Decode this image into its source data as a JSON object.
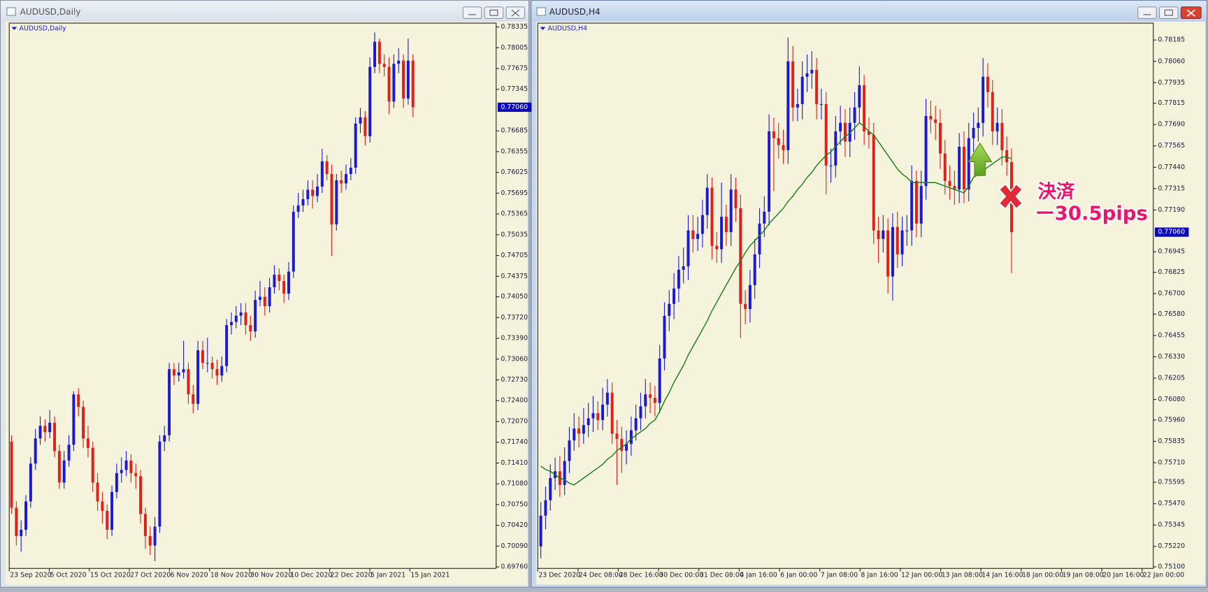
{
  "chart_data": [
    {
      "type": "candlestick",
      "window_title": "AUDUSD,Daily",
      "symbol_label": "AUDUSD,Daily",
      "bull_color": "#1a1ad6",
      "bear_color": "#e0201b",
      "ylim": [
        0.69736,
        0.78396
      ],
      "yticks": [
        0.78335,
        0.78005,
        0.77675,
        0.77345,
        0.76685,
        0.76355,
        0.76025,
        0.75695,
        0.75365,
        0.75035,
        0.74705,
        0.74375,
        {
          "value": 0.7405,
          "label": "0.74050"
        },
        {
          "value": 0.7372,
          "label": "0.73720"
        },
        {
          "value": 0.7339,
          "label": "0.73390"
        },
        {
          "value": 0.7306,
          "label": "0.73060"
        },
        {
          "value": 0.7273,
          "label": "0.72730"
        },
        {
          "value": 0.724,
          "label": "0.72400"
        },
        {
          "value": 0.7207,
          "label": "0.72070"
        },
        {
          "value": 0.7174,
          "label": "0.71740"
        },
        {
          "value": 0.7141,
          "label": "0.71410"
        },
        {
          "value": 0.7108,
          "label": "0.71080"
        },
        {
          "value": 0.7075,
          "label": "0.70750"
        },
        {
          "value": 0.7042,
          "label": "0.70420"
        },
        {
          "value": 0.7009,
          "label": "0.70090"
        },
        {
          "value": 0.6976,
          "label": "0.69760"
        }
      ],
      "current_price": {
        "value": 0.7706,
        "label": "0.77060"
      },
      "x_labels": [
        "23 Sep 2020",
        "5 Oct 2020",
        "15 Oct 2020",
        "27 Oct 2020",
        "6 Nov 2020",
        "18 Nov 2020",
        "30 Nov 2020",
        "10 Dec 2020",
        "22 Dec 2020",
        "5 Jan 2021",
        "15 Jan 2021"
      ],
      "open": [
        0.7175,
        0.707,
        0.7025,
        0.7035,
        0.708,
        0.714,
        0.718,
        0.72,
        0.719,
        0.7205,
        0.716,
        0.711,
        0.7145,
        0.717,
        0.725,
        0.723,
        0.718,
        0.7165,
        0.711,
        0.708,
        0.7065,
        0.7035,
        0.7095,
        0.7125,
        0.713,
        0.7145,
        0.7125,
        0.712,
        0.706,
        0.7025,
        0.701,
        0.704,
        0.7175,
        0.7185,
        0.729,
        0.728,
        0.7285,
        0.729,
        0.725,
        0.7235,
        0.732,
        0.73,
        0.73,
        0.729,
        0.728,
        0.7295,
        0.736,
        0.7365,
        0.7375,
        0.738,
        0.736,
        0.735,
        0.74,
        0.7405,
        0.739,
        0.742,
        0.744,
        0.743,
        0.741,
        0.7445,
        0.754,
        0.755,
        0.756,
        0.7575,
        0.7565,
        0.758,
        0.762,
        0.76,
        0.752,
        0.759,
        0.7585,
        0.76,
        0.761,
        0.768,
        0.769,
        0.766,
        0.777,
        0.781,
        0.7775,
        0.777,
        0.7715,
        0.7775,
        0.778,
        0.772,
        0.778
      ],
      "high": [
        0.7185,
        0.708,
        0.705,
        0.709,
        0.715,
        0.7195,
        0.7215,
        0.721,
        0.7225,
        0.7215,
        0.717,
        0.716,
        0.7185,
        0.7255,
        0.726,
        0.724,
        0.72,
        0.7175,
        0.7125,
        0.7095,
        0.7075,
        0.7105,
        0.714,
        0.715,
        0.716,
        0.7155,
        0.714,
        0.713,
        0.707,
        0.704,
        0.7055,
        0.7185,
        0.72,
        0.73,
        0.73,
        0.73,
        0.7335,
        0.73,
        0.7265,
        0.7335,
        0.7335,
        0.734,
        0.731,
        0.7305,
        0.731,
        0.737,
        0.738,
        0.739,
        0.7395,
        0.7395,
        0.7375,
        0.7415,
        0.743,
        0.742,
        0.7435,
        0.7455,
        0.745,
        0.744,
        0.746,
        0.755,
        0.757,
        0.7575,
        0.759,
        0.759,
        0.76,
        0.764,
        0.763,
        0.7615,
        0.76,
        0.7605,
        0.7615,
        0.7625,
        0.769,
        0.7705,
        0.77,
        0.7785,
        0.7825,
        0.7815,
        0.779,
        0.7785,
        0.779,
        0.78,
        0.779,
        0.7815,
        0.779
      ],
      "low": [
        0.706,
        0.701,
        0.7,
        0.7025,
        0.707,
        0.713,
        0.717,
        0.7175,
        0.718,
        0.715,
        0.71,
        0.71,
        0.7135,
        0.716,
        0.7215,
        0.7165,
        0.715,
        0.7095,
        0.7065,
        0.7045,
        0.702,
        0.7025,
        0.7085,
        0.711,
        0.712,
        0.711,
        0.71,
        0.7045,
        0.7005,
        0.6995,
        0.6985,
        0.703,
        0.716,
        0.7175,
        0.7265,
        0.727,
        0.7275,
        0.7235,
        0.722,
        0.7225,
        0.729,
        0.7285,
        0.7275,
        0.7265,
        0.727,
        0.7285,
        0.7345,
        0.7355,
        0.736,
        0.7345,
        0.7335,
        0.734,
        0.739,
        0.7375,
        0.738,
        0.741,
        0.7415,
        0.7395,
        0.74,
        0.7435,
        0.753,
        0.754,
        0.755,
        0.7545,
        0.7555,
        0.757,
        0.759,
        0.747,
        0.751,
        0.757,
        0.7575,
        0.759,
        0.76,
        0.7665,
        0.7645,
        0.765,
        0.776,
        0.776,
        0.7755,
        0.7695,
        0.7705,
        0.776,
        0.7705,
        0.771,
        0.769
      ],
      "close": [
        0.707,
        0.7025,
        0.7035,
        0.708,
        0.714,
        0.718,
        0.72,
        0.719,
        0.7205,
        0.716,
        0.711,
        0.7145,
        0.717,
        0.725,
        0.723,
        0.718,
        0.7165,
        0.711,
        0.708,
        0.7065,
        0.7035,
        0.7095,
        0.7125,
        0.713,
        0.7145,
        0.7125,
        0.712,
        0.706,
        0.7025,
        0.701,
        0.704,
        0.7175,
        0.7185,
        0.729,
        0.728,
        0.7285,
        0.729,
        0.725,
        0.7235,
        0.732,
        0.73,
        0.73,
        0.729,
        0.728,
        0.7295,
        0.736,
        0.7365,
        0.7375,
        0.738,
        0.736,
        0.735,
        0.74,
        0.7405,
        0.739,
        0.742,
        0.744,
        0.743,
        0.741,
        0.7445,
        0.754,
        0.755,
        0.756,
        0.7575,
        0.7565,
        0.758,
        0.762,
        0.76,
        0.752,
        0.759,
        0.7585,
        0.76,
        0.761,
        0.768,
        0.769,
        0.766,
        0.777,
        0.781,
        0.7775,
        0.777,
        0.7715,
        0.7775,
        0.778,
        0.772,
        0.778,
        0.7706
      ]
    },
    {
      "type": "candlestick",
      "window_title": "AUDUSD,H4",
      "symbol_label": "AUDUSD,H4",
      "bull_color": "#1a1ad6",
      "bear_color": "#e0201b",
      "ylim": [
        0.75091,
        0.78284
      ],
      "yticks": [
        0.78185,
        {
          "value": 0.7806,
          "label": "0.78060"
        },
        0.77935,
        0.77815,
        {
          "value": 0.7769,
          "label": "0.77690"
        },
        0.77565,
        {
          "value": 0.7744,
          "label": "0.77440"
        },
        0.77315,
        {
          "value": 0.7719,
          "label": "0.77190"
        },
        0.76945,
        0.76825,
        {
          "value": 0.767,
          "label": "0.76700"
        },
        {
          "value": 0.7658,
          "label": "0.76580"
        },
        0.76455,
        {
          "value": 0.7633,
          "label": "0.76330"
        },
        0.76205,
        {
          "value": 0.7608,
          "label": "0.76080"
        },
        {
          "value": 0.7596,
          "label": "0.75960"
        },
        0.75835,
        {
          "value": 0.7571,
          "label": "0.75710"
        },
        0.75595,
        {
          "value": 0.7547,
          "label": "0.75470"
        },
        0.75345,
        {
          "value": 0.7522,
          "label": "0.75220"
        },
        {
          "value": 0.751,
          "label": "0.75100"
        }
      ],
      "current_price": {
        "value": 0.7706,
        "label": "0.77060"
      },
      "x_labels": [
        "23 Dec 2020",
        "24 Dec 08:00",
        "28 Dec 16:00",
        "30 Dec 00:00",
        "31 Dec 08:00",
        "4 Jan 16:00",
        "6 Jan 00:00",
        "7 Jan 08:00",
        "8 Jan 16:00",
        "12 Jan 00:00",
        "13 Jan 08:00",
        "14 Jan 16:00",
        "18 Jan 00:00",
        "19 Jan 08:00",
        "20 Jan 16:00",
        "22 Jan 00:00"
      ],
      "open": [
        0.7522,
        0.754,
        0.7549,
        0.7562,
        0.7566,
        0.7558,
        0.7572,
        0.7584,
        0.7591,
        0.7588,
        0.7593,
        0.7597,
        0.76,
        0.7596,
        0.7605,
        0.7612,
        0.7588,
        0.7585,
        0.7578,
        0.7582,
        0.759,
        0.7597,
        0.7604,
        0.7611,
        0.7609,
        0.7606,
        0.7632,
        0.7657,
        0.7664,
        0.7673,
        0.7684,
        0.7686,
        0.7707,
        0.7702,
        0.7705,
        0.7716,
        0.7732,
        0.7698,
        0.7696,
        0.7715,
        0.7706,
        0.7731,
        0.772,
        0.7664,
        0.7661,
        0.7675,
        0.7693,
        0.7711,
        0.7718,
        0.7765,
        0.7761,
        0.7757,
        0.7754,
        0.7806,
        0.7779,
        0.7781,
        0.7797,
        0.7799,
        0.7801,
        0.7781,
        0.7781,
        0.7745,
        0.7745,
        0.7765,
        0.777,
        0.7759,
        0.777,
        0.7779,
        0.7792,
        0.7765,
        0.7763,
        0.7707,
        0.7702,
        0.7707,
        0.768,
        0.7709,
        0.7693,
        0.7707,
        0.7707,
        0.7736,
        0.7711,
        0.7733,
        0.7774,
        0.7772,
        0.777,
        0.7752,
        0.7736,
        0.7733,
        0.7731,
        0.7756,
        0.7731,
        0.7761,
        0.7767,
        0.777,
        0.7797,
        0.7788,
        0.7765,
        0.777,
        0.7754,
        0.7747
      ],
      "high": [
        0.7548,
        0.7557,
        0.757,
        0.7574,
        0.7575,
        0.758,
        0.7592,
        0.76,
        0.7598,
        0.7603,
        0.7606,
        0.761,
        0.7607,
        0.7615,
        0.762,
        0.7618,
        0.7596,
        0.7592,
        0.759,
        0.7598,
        0.7605,
        0.7612,
        0.762,
        0.7618,
        0.7616,
        0.764,
        0.7665,
        0.7672,
        0.7682,
        0.7692,
        0.7697,
        0.7716,
        0.7716,
        0.7715,
        0.7725,
        0.774,
        0.7738,
        0.7706,
        0.7735,
        0.7722,
        0.774,
        0.7738,
        0.7728,
        0.7672,
        0.7684,
        0.7702,
        0.772,
        0.7727,
        0.7775,
        0.7773,
        0.777,
        0.7766,
        0.782,
        0.7815,
        0.779,
        0.7806,
        0.781,
        0.7812,
        0.7808,
        0.779,
        0.7788,
        0.7755,
        0.7774,
        0.778,
        0.7778,
        0.7779,
        0.7788,
        0.7803,
        0.7798,
        0.7773,
        0.777,
        0.7715,
        0.7716,
        0.7714,
        0.7717,
        0.7718,
        0.7715,
        0.7716,
        0.7745,
        0.7742,
        0.7742,
        0.7784,
        0.7783,
        0.778,
        0.7778,
        0.776,
        0.7745,
        0.7742,
        0.7764,
        0.7765,
        0.777,
        0.7776,
        0.7779,
        0.7808,
        0.7805,
        0.7795,
        0.7779,
        0.7778,
        0.7762,
        0.7755
      ],
      "low": [
        0.7515,
        0.7532,
        0.7543,
        0.7555,
        0.7551,
        0.7552,
        0.7565,
        0.7578,
        0.758,
        0.7582,
        0.7586,
        0.7589,
        0.759,
        0.759,
        0.7598,
        0.7582,
        0.7558,
        0.7565,
        0.757,
        0.7575,
        0.7584,
        0.759,
        0.7597,
        0.76,
        0.7598,
        0.76,
        0.7625,
        0.7648,
        0.7655,
        0.7665,
        0.7676,
        0.7678,
        0.7694,
        0.7695,
        0.7697,
        0.7708,
        0.769,
        0.7688,
        0.7688,
        0.7698,
        0.7698,
        0.7712,
        0.7644,
        0.7652,
        0.7653,
        0.7667,
        0.7685,
        0.7703,
        0.771,
        0.773,
        0.7749,
        0.7746,
        0.7746,
        0.7771,
        0.7771,
        0.7772,
        0.7788,
        0.779,
        0.7772,
        0.7772,
        0.7728,
        0.7735,
        0.7738,
        0.7757,
        0.775,
        0.775,
        0.776,
        0.777,
        0.7757,
        0.7755,
        0.7699,
        0.7688,
        0.7694,
        0.767,
        0.7666,
        0.7685,
        0.7686,
        0.7698,
        0.7698,
        0.7703,
        0.7703,
        0.7725,
        0.7764,
        0.776,
        0.7743,
        0.7728,
        0.7725,
        0.7722,
        0.7723,
        0.7723,
        0.7724,
        0.7753,
        0.7759,
        0.7762,
        0.7779,
        0.7757,
        0.7757,
        0.7745,
        0.7739,
        0.7682
      ],
      "close": [
        0.754,
        0.7549,
        0.7562,
        0.7566,
        0.7558,
        0.7572,
        0.7584,
        0.7591,
        0.7588,
        0.7593,
        0.7597,
        0.76,
        0.7596,
        0.7605,
        0.7612,
        0.7588,
        0.7585,
        0.7578,
        0.7582,
        0.759,
        0.7597,
        0.7604,
        0.7611,
        0.7609,
        0.7606,
        0.7632,
        0.7657,
        0.7664,
        0.7673,
        0.7684,
        0.7686,
        0.7707,
        0.7702,
        0.7705,
        0.7716,
        0.7732,
        0.7698,
        0.7696,
        0.7715,
        0.7706,
        0.7731,
        0.772,
        0.7664,
        0.7661,
        0.7675,
        0.7693,
        0.7711,
        0.7718,
        0.7765,
        0.7761,
        0.7757,
        0.7754,
        0.7806,
        0.7779,
        0.7781,
        0.7797,
        0.7799,
        0.7801,
        0.7781,
        0.7781,
        0.7745,
        0.7745,
        0.7765,
        0.777,
        0.7759,
        0.777,
        0.7779,
        0.7792,
        0.7765,
        0.7763,
        0.7707,
        0.7702,
        0.7707,
        0.768,
        0.7709,
        0.7693,
        0.7707,
        0.7707,
        0.7736,
        0.7711,
        0.7733,
        0.7774,
        0.7772,
        0.777,
        0.7752,
        0.7736,
        0.7733,
        0.7731,
        0.7756,
        0.7731,
        0.7761,
        0.7767,
        0.777,
        0.7797,
        0.7788,
        0.7765,
        0.777,
        0.7754,
        0.7747,
        0.7706
      ],
      "moving_average": {
        "color": "#178017",
        "values": [
          0.7569,
          0.7567,
          0.7566,
          0.7564,
          0.7562,
          0.7561,
          0.7559,
          0.7558,
          0.756,
          0.7562,
          0.7564,
          0.7566,
          0.7568,
          0.757,
          0.7573,
          0.7575,
          0.7578,
          0.758,
          0.7582,
          0.7585,
          0.7587,
          0.7589,
          0.7591,
          0.7594,
          0.7596,
          0.7601,
          0.7607,
          0.7612,
          0.7618,
          0.7623,
          0.7628,
          0.7634,
          0.7639,
          0.7644,
          0.7649,
          0.7654,
          0.766,
          0.7665,
          0.767,
          0.7675,
          0.768,
          0.7685,
          0.7689,
          0.7694,
          0.7698,
          0.7701,
          0.7704,
          0.7707,
          0.7711,
          0.7714,
          0.7717,
          0.772,
          0.7724,
          0.7727,
          0.7731,
          0.7734,
          0.7738,
          0.7741,
          0.7745,
          0.7748,
          0.7751,
          0.7753,
          0.7756,
          0.7759,
          0.7762,
          0.7764,
          0.7767,
          0.777,
          0.7768,
          0.7765,
          0.7763,
          0.7759,
          0.7755,
          0.7751,
          0.7747,
          0.7743,
          0.774,
          0.7738,
          0.7735,
          0.7735,
          0.7735,
          0.7735,
          0.7735,
          0.7735,
          0.7734,
          0.7733,
          0.7732,
          0.7731,
          0.773,
          0.7729,
          0.7733,
          0.7738,
          0.774,
          0.7742,
          0.7744,
          0.7746,
          0.7748,
          0.775,
          0.775,
          0.7749
        ]
      },
      "annotations": [
        "決済",
        "ー30.5pips"
      ]
    }
  ]
}
